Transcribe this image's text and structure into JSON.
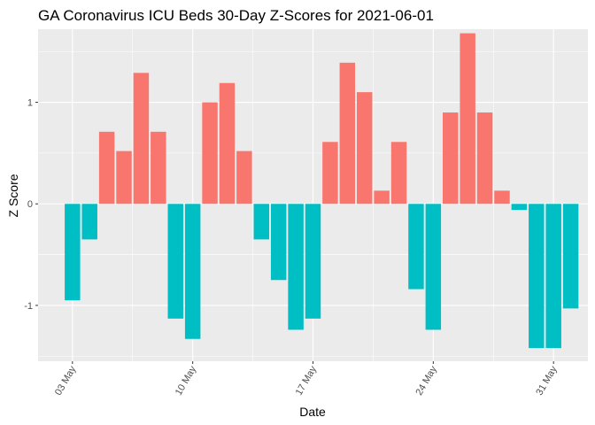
{
  "chart_data": {
    "type": "bar",
    "title": "GA Coronavirus ICU Beds 30-Day Z-Scores for 2021-06-01",
    "xlabel": "Date",
    "ylabel": "Z Score",
    "ylim": [
      -1.55,
      1.72
    ],
    "xlim": [
      "2021-05-01",
      "2021-06-02"
    ],
    "y_ticks": [
      -1,
      0,
      1
    ],
    "y_tick_labels": [
      "-1",
      "0",
      "1"
    ],
    "x_ticks": [
      "2021-05-03",
      "2021-05-10",
      "2021-05-17",
      "2021-05-24",
      "2021-05-31"
    ],
    "x_tick_labels": [
      "03 May",
      "10 May",
      "17 May",
      "24 May",
      "31 May"
    ],
    "grid": true,
    "legend": "none",
    "colors": {
      "positive": "#F8766D",
      "negative": "#00BFC4",
      "panel": "#EBEBEB",
      "grid": "#FFFFFF"
    },
    "x": [
      "2021-05-03",
      "2021-05-04",
      "2021-05-05",
      "2021-05-06",
      "2021-05-07",
      "2021-05-08",
      "2021-05-09",
      "2021-05-10",
      "2021-05-11",
      "2021-05-12",
      "2021-05-13",
      "2021-05-14",
      "2021-05-15",
      "2021-05-16",
      "2021-05-17",
      "2021-05-18",
      "2021-05-19",
      "2021-05-20",
      "2021-05-21",
      "2021-05-22",
      "2021-05-23",
      "2021-05-24",
      "2021-05-25",
      "2021-05-26",
      "2021-05-27",
      "2021-05-28",
      "2021-05-29",
      "2021-05-30",
      "2021-05-31",
      "2021-06-01"
    ],
    "values": [
      -0.95,
      -0.35,
      0.71,
      0.52,
      1.29,
      0.71,
      -1.13,
      -1.33,
      1.0,
      1.19,
      0.52,
      -0.35,
      -0.75,
      -1.24,
      -1.13,
      0.61,
      1.39,
      1.1,
      0.13,
      0.61,
      -0.84,
      -1.24,
      0.9,
      1.68,
      0.9,
      0.13,
      -0.06,
      -1.42,
      -1.42,
      -1.03
    ]
  }
}
